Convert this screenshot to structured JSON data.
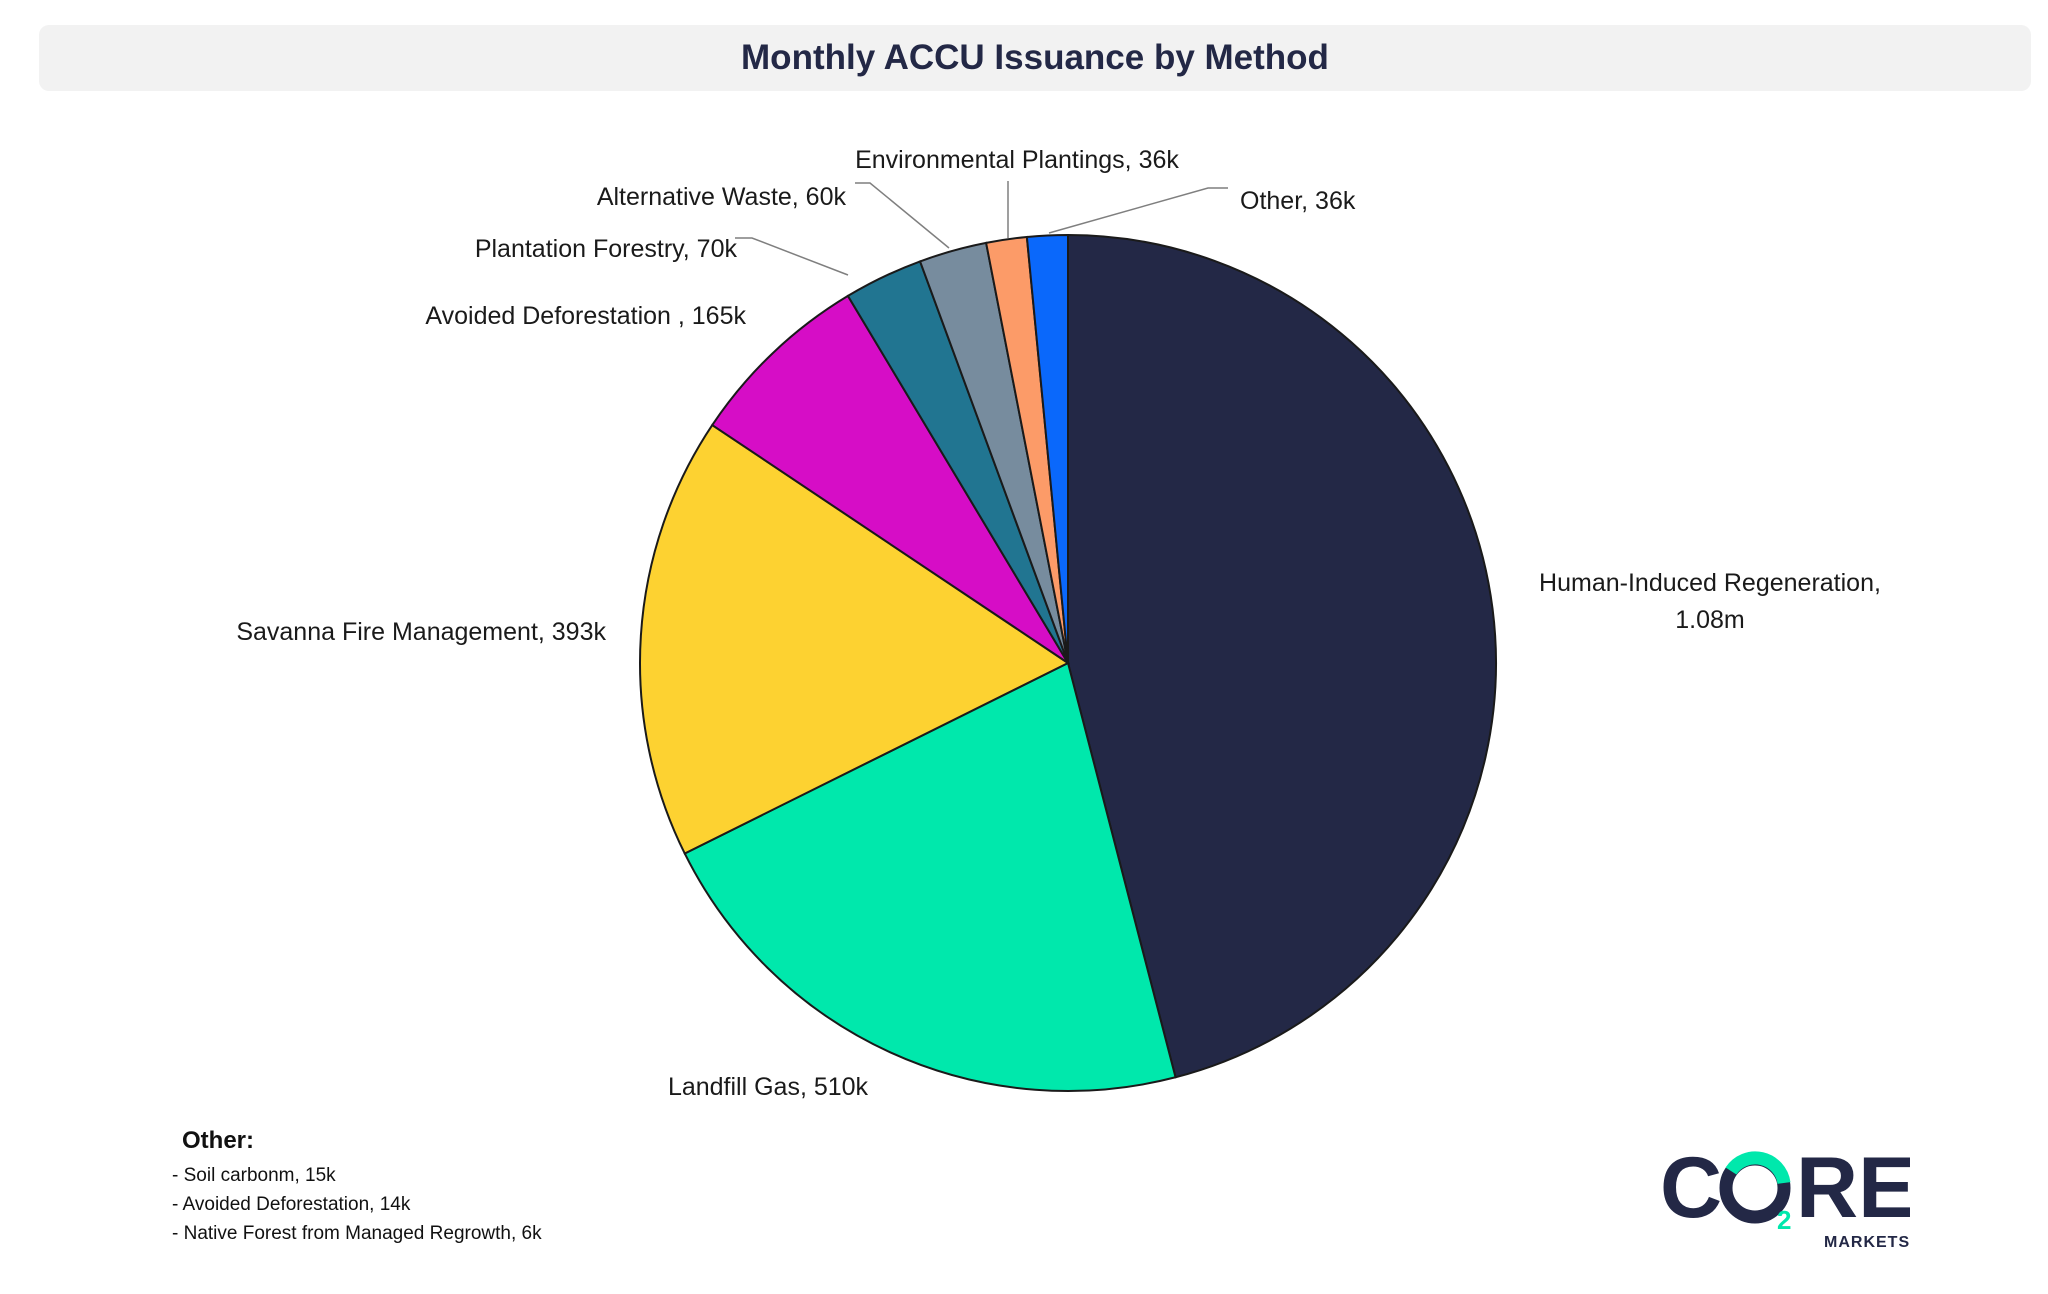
{
  "title": "Monthly ACCU Issuance by Method",
  "chart_data": {
    "type": "pie",
    "title": "Monthly ACCU Issuance by Method",
    "start": "12 o'clock",
    "direction": "clockwise",
    "slices": [
      {
        "name": "Human-Induced Regeneration",
        "value": 1080000,
        "label": "Human-Induced Regeneration,",
        "label2": "1.08m",
        "color": "#232846"
      },
      {
        "name": "Landfill Gas",
        "value": 510000,
        "label": "Landfill Gas, 510k",
        "color": "#00e8ac"
      },
      {
        "name": "Savanna Fire Management",
        "value": 393000,
        "label": "Savanna Fire Management, 393k",
        "color": "#fdd231"
      },
      {
        "name": "Avoided Deforestation",
        "value": 165000,
        "label": "Avoided Deforestation , 165k",
        "color": "#d60dc6"
      },
      {
        "name": "Plantation Forestry",
        "value": 70000,
        "label": "Plantation Forestry, 70k",
        "color": "#217591"
      },
      {
        "name": "Alternative Waste",
        "value": 60000,
        "label": "Alternative Waste, 60k",
        "color": "#778c9e"
      },
      {
        "name": "Environmental Plantings",
        "value": 36000,
        "label": "Environmental Plantings, 36k",
        "color": "#fc9b68"
      },
      {
        "name": "Other",
        "value": 36000,
        "label": "Other, 36k",
        "color": "#0a68fb"
      }
    ]
  },
  "other_note": {
    "heading": "Other:",
    "items": [
      "- Soil carbonm, 15k",
      "- Avoided Deforestation, 14k",
      "- Native Forest from Managed Regrowth, 6k"
    ]
  },
  "logo": {
    "brand": "CO2RE",
    "sub": "MARKETS",
    "colors": {
      "dark": "#232846",
      "accent": "#00e8ac"
    }
  }
}
